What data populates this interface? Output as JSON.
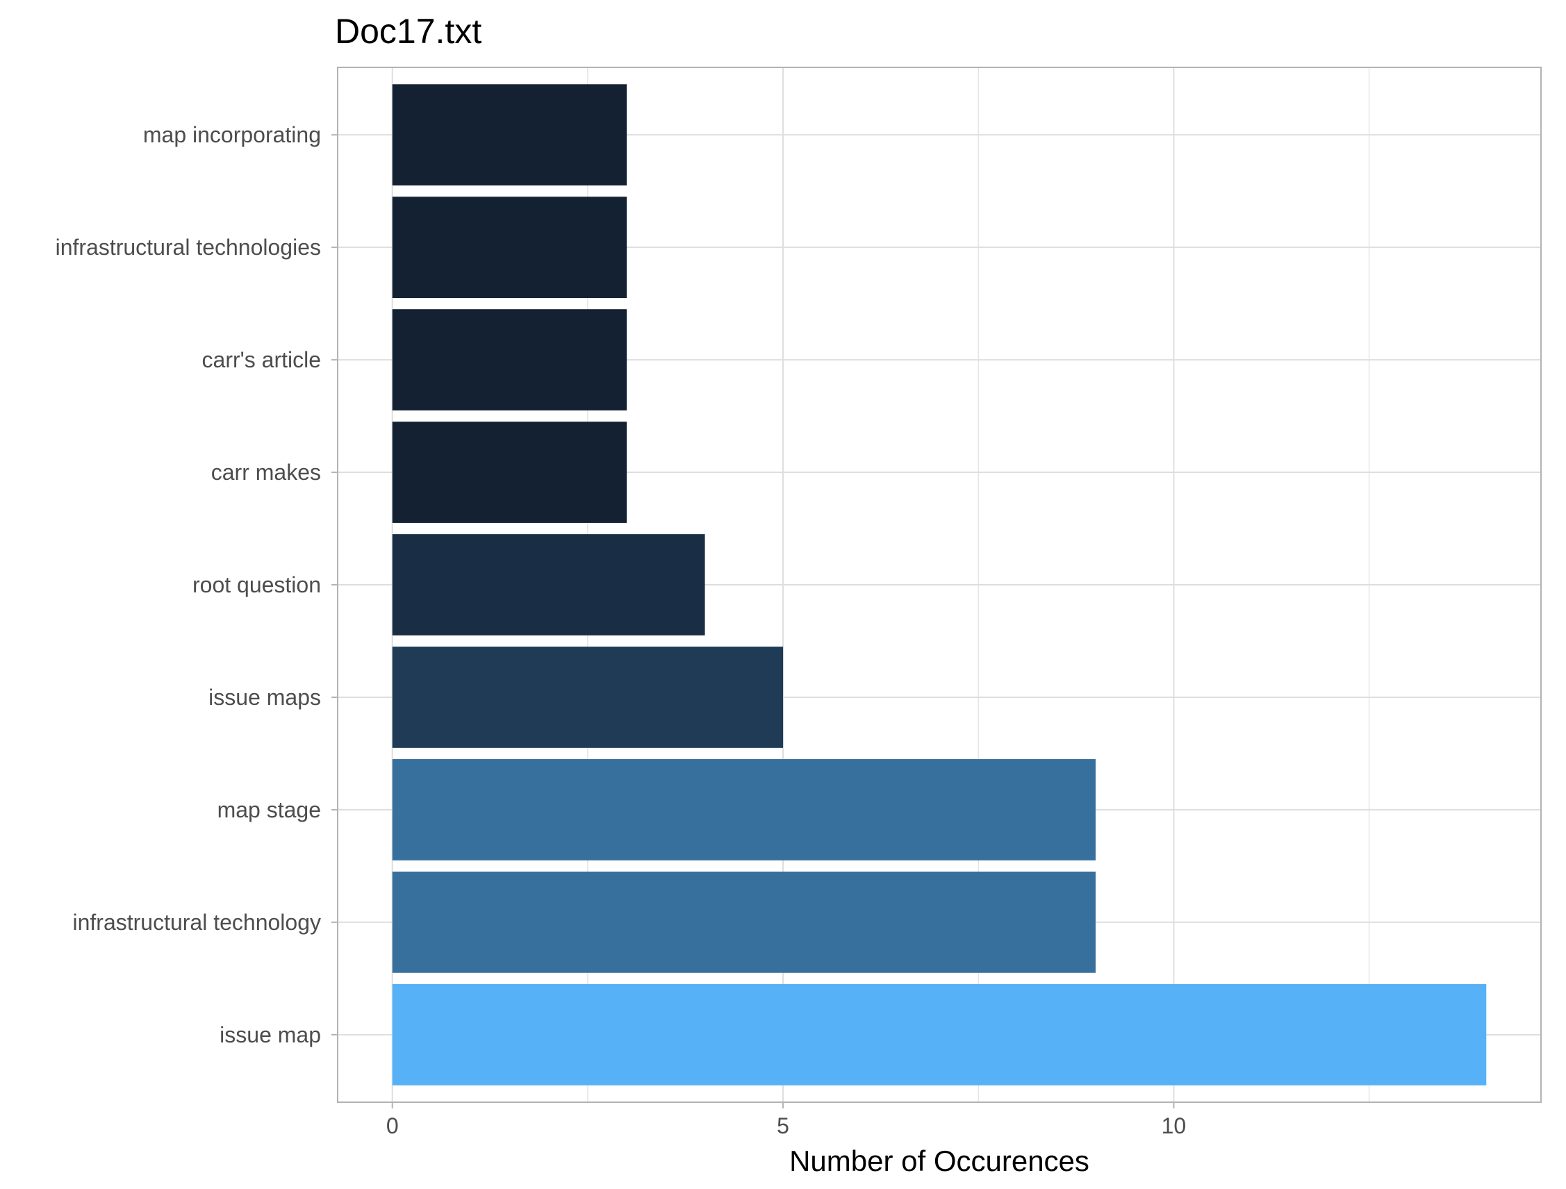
{
  "chart_data": {
    "type": "bar",
    "orientation": "horizontal",
    "title": "Doc17.txt",
    "xlabel": "Number of Occurences",
    "ylabel": "",
    "categories": [
      "map incorporating",
      "infrastructural technologies",
      "carr's article",
      "carr makes",
      "root question",
      "issue maps",
      "map stage",
      "infrastructural technology",
      "issue map"
    ],
    "values": [
      3,
      3,
      3,
      3,
      4,
      5,
      9,
      9,
      14
    ],
    "xlim": [
      -0.7,
      14.7
    ],
    "xticks": [
      0,
      5,
      10
    ],
    "xtick_labels": [
      "0",
      "5",
      "10"
    ],
    "grid": true,
    "legend": "none",
    "colors": {
      "low": "#132132",
      "high": "#56B1F7",
      "grid": "#dedede",
      "panel_border": "#b3b3b3",
      "tick": "#4d4d4d"
    }
  }
}
